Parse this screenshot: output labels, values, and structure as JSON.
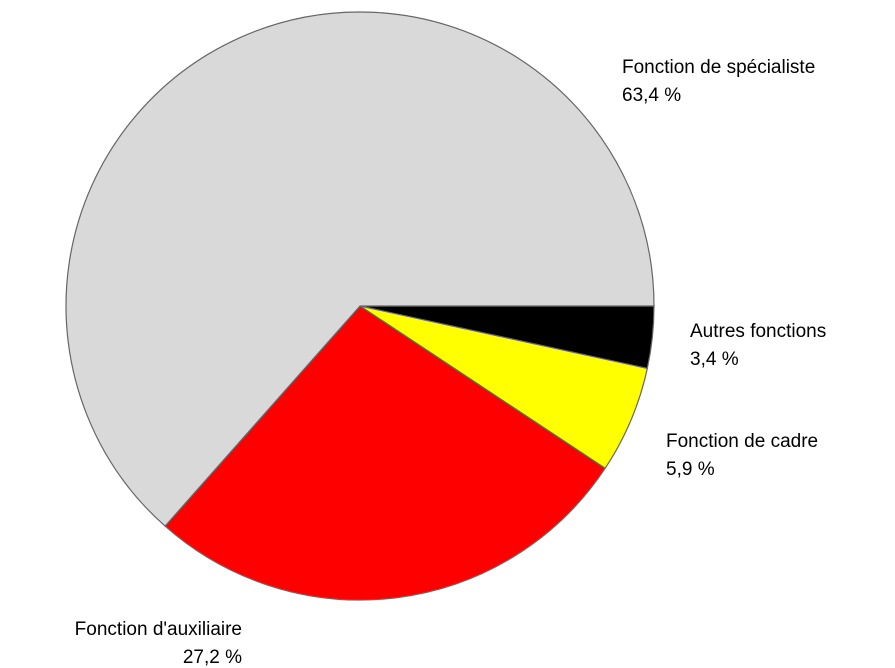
{
  "chart_data": {
    "type": "pie",
    "categories": [
      "Autres fonctions",
      "Fonction de cadre",
      "Fonction d'auxiliaire",
      "Fonction de spécialiste"
    ],
    "values": [
      3.4,
      5.9,
      27.2,
      63.4
    ],
    "value_labels": [
      "3,4 %",
      "5,9 %",
      "27,2 %",
      "63,4 %"
    ],
    "colors": [
      "#000000",
      "#ffff00",
      "#ff0000",
      "#d9d9d9"
    ]
  }
}
